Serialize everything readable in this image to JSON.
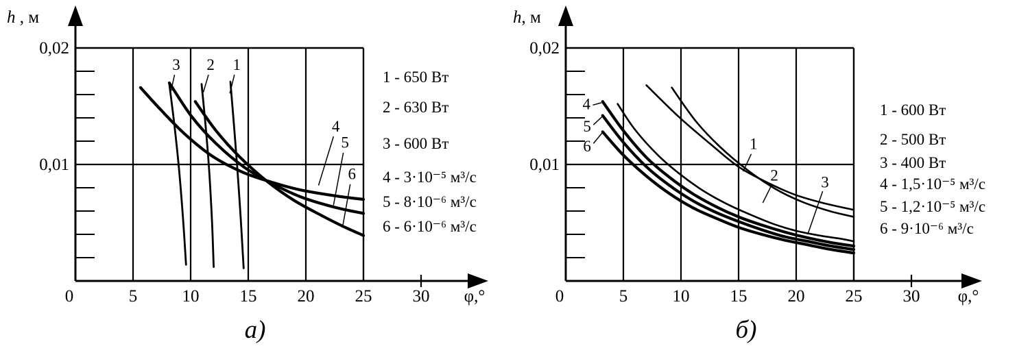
{
  "chart_data": [
    {
      "id": "a",
      "type": "line",
      "caption": "а)",
      "title": "",
      "xlabel": "φ,°",
      "ylabel": "h , м",
      "xlim": [
        0,
        36
      ],
      "ylim": [
        0,
        0.02
      ],
      "box_xmax": 25,
      "color": "#000000",
      "grid": true,
      "grid_x": [
        5,
        10,
        15,
        20
      ],
      "grid_y": [
        0.01
      ],
      "x_ticks": [
        0,
        5,
        10,
        15,
        20,
        25,
        30
      ],
      "x_tick_labels": [
        "0",
        "5",
        "10",
        "15",
        "20",
        "25",
        "30"
      ],
      "y_ticks": [
        0.01,
        0.02
      ],
      "y_tick_labels": [
        "0,01",
        "0,02"
      ],
      "y_minor_step": 0.002,
      "legend_position": "right",
      "legend": [
        "1 - 650 Вт",
        "2 - 630 Вт",
        "3 - 600 Вт",
        "4 - 3·10⁻⁵ м³/с",
        "5 - 8·10⁻⁶ м³/с",
        "6 - 6·10⁻⁶ м³/с"
      ],
      "series": [
        {
          "name": "1",
          "lw": 2.8,
          "points": [
            [
              13.45,
              0.0171
            ],
            [
              13.75,
              0.0135
            ],
            [
              14.05,
              0.0097
            ],
            [
              14.35,
              0.0053
            ],
            [
              14.6,
              0.0011
            ]
          ]
        },
        {
          "name": "2",
          "lw": 2.8,
          "points": [
            [
              10.95,
              0.0169
            ],
            [
              11.3,
              0.0133
            ],
            [
              11.6,
              0.0096
            ],
            [
              11.85,
              0.0052
            ],
            [
              12.0,
              0.0012
            ]
          ]
        },
        {
          "name": "3",
          "lw": 2.8,
          "points": [
            [
              8.15,
              0.0169
            ],
            [
              8.6,
              0.0133
            ],
            [
              9.0,
              0.0095
            ],
            [
              9.35,
              0.0052
            ],
            [
              9.6,
              0.0014
            ]
          ]
        },
        {
          "name": "4",
          "lw": 4.2,
          "points": [
            [
              5.65,
              0.0166
            ],
            [
              7.4,
              0.0147
            ],
            [
              9.5,
              0.0126
            ],
            [
              11.9,
              0.0107
            ],
            [
              14.6,
              0.0093
            ],
            [
              17.3,
              0.0084
            ],
            [
              19.6,
              0.0078
            ],
            [
              22.6,
              0.0073
            ],
            [
              25,
              0.007
            ]
          ]
        },
        {
          "name": "5",
          "lw": 4.2,
          "points": [
            [
              8.15,
              0.017
            ],
            [
              10.1,
              0.0141
            ],
            [
              12.2,
              0.0118
            ],
            [
              14.6,
              0.0098
            ],
            [
              17.0,
              0.0084
            ],
            [
              19.6,
              0.0072
            ],
            [
              22.6,
              0.0063
            ],
            [
              25,
              0.0058
            ]
          ]
        },
        {
          "name": "6",
          "lw": 4.2,
          "points": [
            [
              10.4,
              0.0154
            ],
            [
              12.2,
              0.0129
            ],
            [
              14.3,
              0.0106
            ],
            [
              16.7,
              0.0085
            ],
            [
              19.0,
              0.0069
            ],
            [
              21.4,
              0.0056
            ],
            [
              23.2,
              0.0047
            ],
            [
              25,
              0.0039
            ]
          ]
        }
      ],
      "labels": [
        {
          "text": "3",
          "x": 8.75,
          "y": 0.0186,
          "leader": [
            8.6,
            0.0177,
            8.3,
            0.0163
          ]
        },
        {
          "text": "2",
          "x": 11.73,
          "y": 0.0186,
          "leader": [
            11.55,
            0.0177,
            11.1,
            0.0162
          ]
        },
        {
          "text": "1",
          "x": 14.0,
          "y": 0.0186,
          "leader": [
            13.8,
            0.0177,
            13.4,
            0.0161
          ]
        },
        {
          "text": "4",
          "x": 22.6,
          "y": 0.0133,
          "leader": [
            22.4,
            0.0124,
            21.1,
            0.0082
          ]
        },
        {
          "text": "5",
          "x": 23.4,
          "y": 0.0119,
          "leader": [
            23.25,
            0.011,
            22.4,
            0.0065
          ]
        },
        {
          "text": "6",
          "x": 24.0,
          "y": 0.0092,
          "leader": [
            23.85,
            0.0083,
            23.2,
            0.0047
          ]
        }
      ]
    },
    {
      "id": "b",
      "type": "line",
      "caption": "б)",
      "title": "",
      "xlabel": "φ,°",
      "ylabel": "h, м",
      "xlim": [
        0,
        36
      ],
      "ylim": [
        0,
        0.02
      ],
      "box_xmax": 25,
      "color": "#000000",
      "grid": true,
      "grid_x": [
        5,
        10,
        15,
        20
      ],
      "grid_y": [
        0.01
      ],
      "x_ticks": [
        0,
        5,
        10,
        15,
        20,
        25,
        30
      ],
      "x_tick_labels": [
        "0",
        "5",
        "10",
        "15",
        "20",
        "25",
        "30"
      ],
      "y_ticks": [
        0.01,
        0.02
      ],
      "y_tick_labels": [
        "0,01",
        "0,02"
      ],
      "y_minor_step": 0.002,
      "legend_position": "right",
      "legend": [
        "1 - 600 Вт",
        "2 - 500 Вт",
        "3 - 400 Вт",
        "4 - 1,5·10⁻⁵ м³/с",
        "5 - 1,2·10⁻⁵ м³/с",
        "6 - 9·10⁻⁶ м³/с"
      ],
      "series": [
        {
          "name": "1",
          "lw": 2.6,
          "points": [
            [
              7.0,
              0.0168
            ],
            [
              9.8,
              0.0141
            ],
            [
              12.5,
              0.0118
            ],
            [
              15.0,
              0.0098
            ],
            [
              17.6,
              0.0084
            ],
            [
              19.9,
              0.0074
            ],
            [
              22.3,
              0.0067
            ],
            [
              25,
              0.0061
            ]
          ]
        },
        {
          "name": "2",
          "lw": 2.6,
          "points": [
            [
              9.2,
              0.0166
            ],
            [
              11.3,
              0.0137
            ],
            [
              13.4,
              0.0115
            ],
            [
              15.8,
              0.0095
            ],
            [
              18.2,
              0.0079
            ],
            [
              20.5,
              0.0068
            ],
            [
              22.9,
              0.006
            ],
            [
              25,
              0.0055
            ]
          ]
        },
        {
          "name": "3",
          "lw": 2.6,
          "points": [
            [
              4.5,
              0.0152
            ],
            [
              6.0,
              0.013
            ],
            [
              8.0,
              0.0108
            ],
            [
              10.0,
              0.0091
            ],
            [
              12.0,
              0.0077
            ],
            [
              14.0,
              0.0066
            ],
            [
              16.0,
              0.0057
            ],
            [
              18.0,
              0.0049
            ],
            [
              20.0,
              0.0043
            ],
            [
              22.0,
              0.0039
            ],
            [
              24.0,
              0.0036
            ],
            [
              25,
              0.0034
            ]
          ]
        },
        {
          "name": "4",
          "lw": 4.2,
          "points": [
            [
              3.2,
              0.0154
            ],
            [
              5.0,
              0.0129
            ],
            [
              7.0,
              0.0106
            ],
            [
              9.0,
              0.0089
            ],
            [
              11.0,
              0.0075
            ],
            [
              13.0,
              0.0064
            ],
            [
              15.0,
              0.0055
            ],
            [
              17.0,
              0.0048
            ],
            [
              19.0,
              0.0042
            ],
            [
              21.0,
              0.0037
            ],
            [
              23.0,
              0.0033
            ],
            [
              25,
              0.003
            ]
          ]
        },
        {
          "name": "5",
          "lw": 4.2,
          "points": [
            [
              3.2,
              0.0142
            ],
            [
              5.0,
              0.0119
            ],
            [
              7.0,
              0.0098
            ],
            [
              9.0,
              0.0082
            ],
            [
              11.0,
              0.0069
            ],
            [
              13.0,
              0.0059
            ],
            [
              15.0,
              0.0051
            ],
            [
              17.0,
              0.0044
            ],
            [
              19.0,
              0.0038
            ],
            [
              21.0,
              0.0034
            ],
            [
              23.0,
              0.003
            ],
            [
              25,
              0.0027
            ]
          ]
        },
        {
          "name": "6",
          "lw": 4.2,
          "points": [
            [
              3.2,
              0.0128
            ],
            [
              5.0,
              0.0108
            ],
            [
              7.0,
              0.009
            ],
            [
              9.0,
              0.0075
            ],
            [
              11.0,
              0.0063
            ],
            [
              13.0,
              0.0054
            ],
            [
              15.0,
              0.0046
            ],
            [
              17.0,
              0.004
            ],
            [
              19.0,
              0.0035
            ],
            [
              21.0,
              0.0031
            ],
            [
              23.0,
              0.0027
            ],
            [
              25,
              0.0024
            ]
          ]
        }
      ],
      "labels": [
        {
          "text": "4",
          "x": 1.8,
          "y": 0.0152,
          "leader": [
            2.35,
            0.0151,
            3.1,
            0.0153
          ]
        },
        {
          "text": "5",
          "x": 1.85,
          "y": 0.0133,
          "leader": [
            2.4,
            0.0134,
            3.15,
            0.0141
          ]
        },
        {
          "text": "6",
          "x": 1.85,
          "y": 0.0116,
          "leader": [
            2.4,
            0.0118,
            3.15,
            0.0127
          ]
        },
        {
          "text": "1",
          "x": 16.3,
          "y": 0.0118,
          "leader": [
            16.1,
            0.0109,
            15.4,
            0.0094
          ]
        },
        {
          "text": "2",
          "x": 18.1,
          "y": 0.0091,
          "leader": [
            17.9,
            0.0083,
            17.1,
            0.0067
          ]
        },
        {
          "text": "3",
          "x": 22.5,
          "y": 0.0085,
          "leader": [
            22.3,
            0.0077,
            21.0,
            0.004
          ]
        }
      ]
    }
  ]
}
